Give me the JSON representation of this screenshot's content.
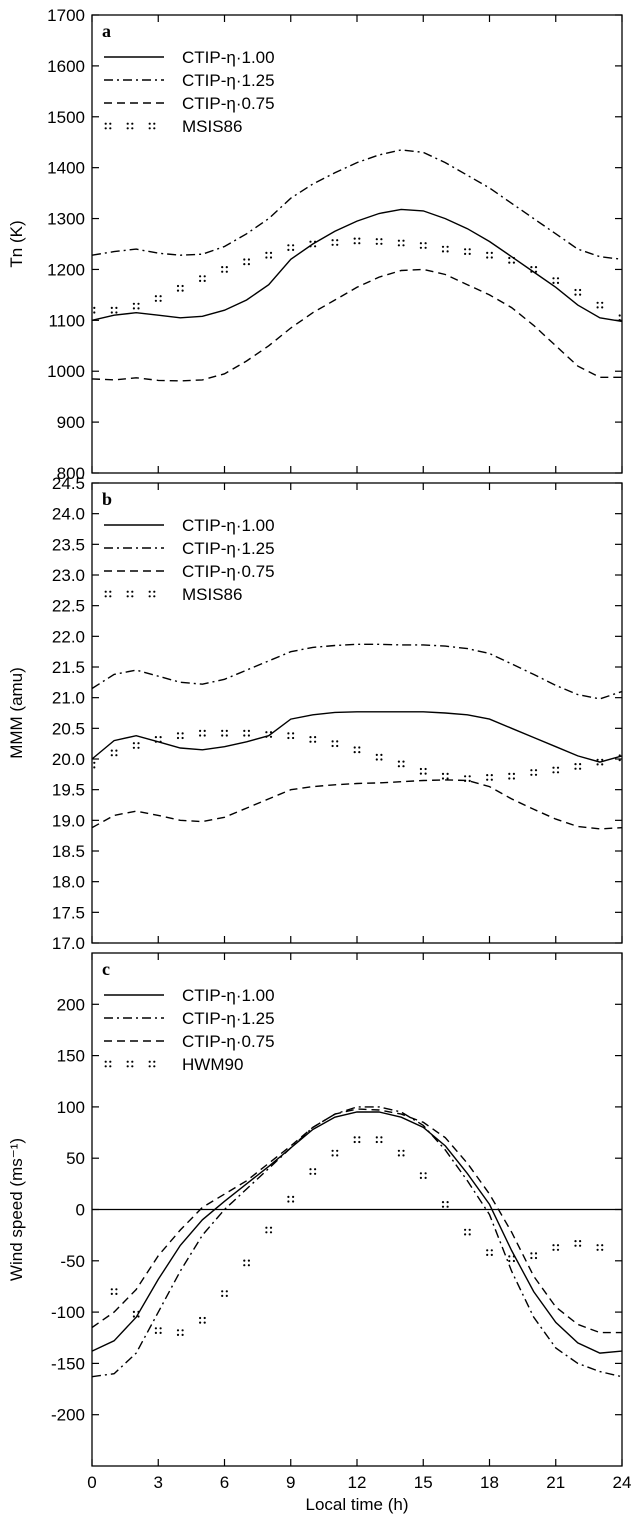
{
  "chart_data": [
    {
      "type": "line",
      "panel_label": "a",
      "title": "",
      "xlabel": "",
      "ylabel": "Tn (K)",
      "xlim": [
        0,
        24
      ],
      "ylim": [
        800,
        1700
      ],
      "x_ticks": [
        0,
        3,
        6,
        9,
        12,
        15,
        18,
        21,
        24
      ],
      "x_tick_labels": [],
      "y_ticks": [
        800,
        900,
        1000,
        1100,
        1200,
        1300,
        1400,
        1500,
        1600,
        1700
      ],
      "grid": false,
      "legend": "top-left",
      "series": [
        {
          "name": "CTIP-η·1.00",
          "style": "solid",
          "x": [
            0,
            1,
            2,
            3,
            4,
            5,
            6,
            7,
            8,
            9,
            10,
            11,
            12,
            13,
            14,
            15,
            16,
            17,
            18,
            19,
            20,
            21,
            22,
            23,
            24
          ],
          "y": [
            1100,
            1110,
            1115,
            1110,
            1105,
            1108,
            1120,
            1140,
            1170,
            1220,
            1250,
            1275,
            1295,
            1310,
            1318,
            1315,
            1300,
            1280,
            1255,
            1225,
            1195,
            1165,
            1130,
            1105,
            1098
          ]
        },
        {
          "name": "CTIP-η·1.25",
          "style": "dashdot",
          "x": [
            0,
            1,
            2,
            3,
            4,
            5,
            6,
            7,
            8,
            9,
            10,
            11,
            12,
            13,
            14,
            15,
            16,
            17,
            18,
            19,
            20,
            21,
            22,
            23,
            24
          ],
          "y": [
            1228,
            1235,
            1240,
            1232,
            1228,
            1230,
            1245,
            1270,
            1300,
            1340,
            1368,
            1390,
            1410,
            1425,
            1435,
            1430,
            1410,
            1385,
            1360,
            1330,
            1300,
            1270,
            1240,
            1225,
            1220
          ]
        },
        {
          "name": "CTIP-η·0.75",
          "style": "dashed",
          "x": [
            0,
            1,
            2,
            3,
            4,
            5,
            6,
            7,
            8,
            9,
            10,
            11,
            12,
            13,
            14,
            15,
            16,
            17,
            18,
            19,
            20,
            21,
            22,
            23,
            24
          ],
          "y": [
            985,
            983,
            987,
            982,
            981,
            983,
            995,
            1020,
            1050,
            1085,
            1115,
            1140,
            1165,
            1185,
            1198,
            1200,
            1190,
            1170,
            1150,
            1125,
            1090,
            1050,
            1010,
            988,
            988
          ]
        },
        {
          "name": "MSIS86",
          "style": "markers",
          "x": [
            0,
            1,
            2,
            3,
            4,
            5,
            6,
            7,
            8,
            9,
            10,
            11,
            12,
            13,
            14,
            15,
            16,
            17,
            18,
            19,
            20,
            21,
            22,
            23,
            24
          ],
          "y": [
            1120,
            1120,
            1128,
            1143,
            1163,
            1182,
            1200,
            1215,
            1228,
            1243,
            1250,
            1253,
            1256,
            1255,
            1252,
            1247,
            1240,
            1235,
            1228,
            1218,
            1200,
            1178,
            1155,
            1130,
            1105
          ]
        }
      ]
    },
    {
      "type": "line",
      "panel_label": "b",
      "title": "",
      "xlabel": "",
      "ylabel": "MMM (amu)",
      "xlim": [
        0,
        24
      ],
      "ylim": [
        17.0,
        24.5
      ],
      "x_ticks": [
        0,
        3,
        6,
        9,
        12,
        15,
        18,
        21,
        24
      ],
      "x_tick_labels": [],
      "y_ticks": [
        17.0,
        17.5,
        18.0,
        18.5,
        19.0,
        19.5,
        20.0,
        20.5,
        21.0,
        21.5,
        22.0,
        22.5,
        23.0,
        23.5,
        24.0,
        24.5
      ],
      "y_tick_labels": [
        "17.0",
        "17.5",
        "18.0",
        "18.5",
        "19.0",
        "19.5",
        "20.0",
        "20.5",
        "21.0",
        "21.5",
        "22.0",
        "22.5",
        "23.0",
        "23.5",
        "24.0",
        "24.5"
      ],
      "grid": false,
      "legend": "top-left",
      "series": [
        {
          "name": "CTIP-η·1.00",
          "style": "solid",
          "x": [
            0,
            1,
            2,
            3,
            4,
            5,
            6,
            7,
            8,
            9,
            10,
            11,
            12,
            13,
            14,
            15,
            16,
            17,
            18,
            19,
            20,
            21,
            22,
            23,
            24
          ],
          "y": [
            20.0,
            20.3,
            20.38,
            20.28,
            20.18,
            20.15,
            20.2,
            20.28,
            20.38,
            20.65,
            20.72,
            20.76,
            20.77,
            20.77,
            20.77,
            20.77,
            20.75,
            20.72,
            20.65,
            20.5,
            20.35,
            20.2,
            20.05,
            19.95,
            20.05
          ]
        },
        {
          "name": "CTIP-η·1.25",
          "style": "dashdot",
          "x": [
            0,
            1,
            2,
            3,
            4,
            5,
            6,
            7,
            8,
            9,
            10,
            11,
            12,
            13,
            14,
            15,
            16,
            17,
            18,
            19,
            20,
            21,
            22,
            23,
            24
          ],
          "y": [
            21.15,
            21.38,
            21.45,
            21.35,
            21.25,
            21.22,
            21.3,
            21.45,
            21.6,
            21.75,
            21.82,
            21.85,
            21.87,
            21.87,
            21.86,
            21.86,
            21.84,
            21.8,
            21.72,
            21.55,
            21.38,
            21.2,
            21.05,
            20.98,
            21.1
          ]
        },
        {
          "name": "CTIP-η·0.75",
          "style": "dashed",
          "x": [
            0,
            1,
            2,
            3,
            4,
            5,
            6,
            7,
            8,
            9,
            10,
            11,
            12,
            13,
            14,
            15,
            16,
            17,
            18,
            19,
            20,
            21,
            22,
            23,
            24
          ],
          "y": [
            18.88,
            19.08,
            19.15,
            19.08,
            19.0,
            18.98,
            19.05,
            19.2,
            19.35,
            19.5,
            19.55,
            19.58,
            19.6,
            19.61,
            19.63,
            19.65,
            19.66,
            19.65,
            19.55,
            19.35,
            19.18,
            19.02,
            18.9,
            18.86,
            18.88
          ]
        },
        {
          "name": "MSIS86",
          "style": "markers",
          "x": [
            0,
            1,
            2,
            3,
            4,
            5,
            6,
            7,
            8,
            9,
            10,
            11,
            12,
            13,
            14,
            15,
            16,
            17,
            18,
            19,
            20,
            21,
            22,
            23,
            24
          ],
          "y": [
            19.9,
            20.1,
            20.22,
            20.32,
            20.38,
            20.42,
            20.42,
            20.42,
            20.4,
            20.38,
            20.32,
            20.25,
            20.15,
            20.03,
            19.92,
            19.8,
            19.72,
            19.68,
            19.7,
            19.72,
            19.78,
            19.82,
            19.88,
            19.95,
            20.02
          ]
        }
      ]
    },
    {
      "type": "line",
      "panel_label": "c",
      "title": "",
      "xlabel": "Local time (h)",
      "ylabel": "Wind speed (ms⁻¹)",
      "xlim": [
        0,
        24
      ],
      "ylim": [
        -250,
        250
      ],
      "x_ticks": [
        0,
        3,
        6,
        9,
        12,
        15,
        18,
        21,
        24
      ],
      "x_tick_labels": [
        "0",
        "3",
        "6",
        "9",
        "12",
        "15",
        "18",
        "21",
        "24"
      ],
      "y_ticks": [
        -200,
        -150,
        -100,
        -50,
        0,
        50,
        100,
        150,
        200
      ],
      "zero_line": true,
      "grid": false,
      "legend": "top-left",
      "series": [
        {
          "name": "CTIP-η·1.00",
          "style": "solid",
          "x": [
            0,
            1,
            2,
            3,
            4,
            5,
            6,
            7,
            8,
            9,
            10,
            11,
            12,
            13,
            14,
            15,
            16,
            17,
            18,
            19,
            20,
            21,
            22,
            23,
            24
          ],
          "y": [
            -138,
            -128,
            -105,
            -68,
            -35,
            -10,
            8,
            25,
            42,
            60,
            78,
            90,
            95,
            95,
            90,
            80,
            62,
            35,
            5,
            -40,
            -80,
            -110,
            -130,
            -140,
            -138
          ]
        },
        {
          "name": "CTIP-η·1.25",
          "style": "dashdot",
          "x": [
            0,
            1,
            2,
            3,
            4,
            5,
            6,
            7,
            8,
            9,
            10,
            11,
            12,
            13,
            14,
            15,
            16,
            17,
            18,
            19,
            20,
            21,
            22,
            23,
            24
          ],
          "y": [
            -163,
            -160,
            -140,
            -100,
            -60,
            -25,
            0,
            20,
            40,
            60,
            80,
            93,
            100,
            100,
            95,
            82,
            58,
            28,
            -5,
            -60,
            -105,
            -135,
            -150,
            -158,
            -163
          ]
        },
        {
          "name": "CTIP-η·0.75",
          "style": "dashed",
          "x": [
            0,
            1,
            2,
            3,
            4,
            5,
            6,
            7,
            8,
            9,
            10,
            11,
            12,
            13,
            14,
            15,
            16,
            17,
            18,
            19,
            20,
            21,
            22,
            23,
            24
          ],
          "y": [
            -115,
            -100,
            -78,
            -45,
            -20,
            2,
            15,
            28,
            45,
            62,
            80,
            93,
            98,
            97,
            93,
            85,
            70,
            45,
            15,
            -22,
            -65,
            -95,
            -112,
            -120,
            -120
          ]
        },
        {
          "name": "HWM90",
          "style": "markers",
          "x": [
            1,
            2,
            3,
            4,
            5,
            6,
            7,
            8,
            9,
            10,
            11,
            12,
            13,
            14,
            15,
            16,
            17,
            18,
            19,
            20,
            21,
            22,
            23
          ],
          "y": [
            -80,
            -102,
            -118,
            -120,
            -108,
            -82,
            -52,
            -20,
            10,
            37,
            55,
            68,
            68,
            55,
            33,
            5,
            -22,
            -42,
            -48,
            -45,
            -37,
            -33,
            -37
          ]
        }
      ]
    }
  ]
}
